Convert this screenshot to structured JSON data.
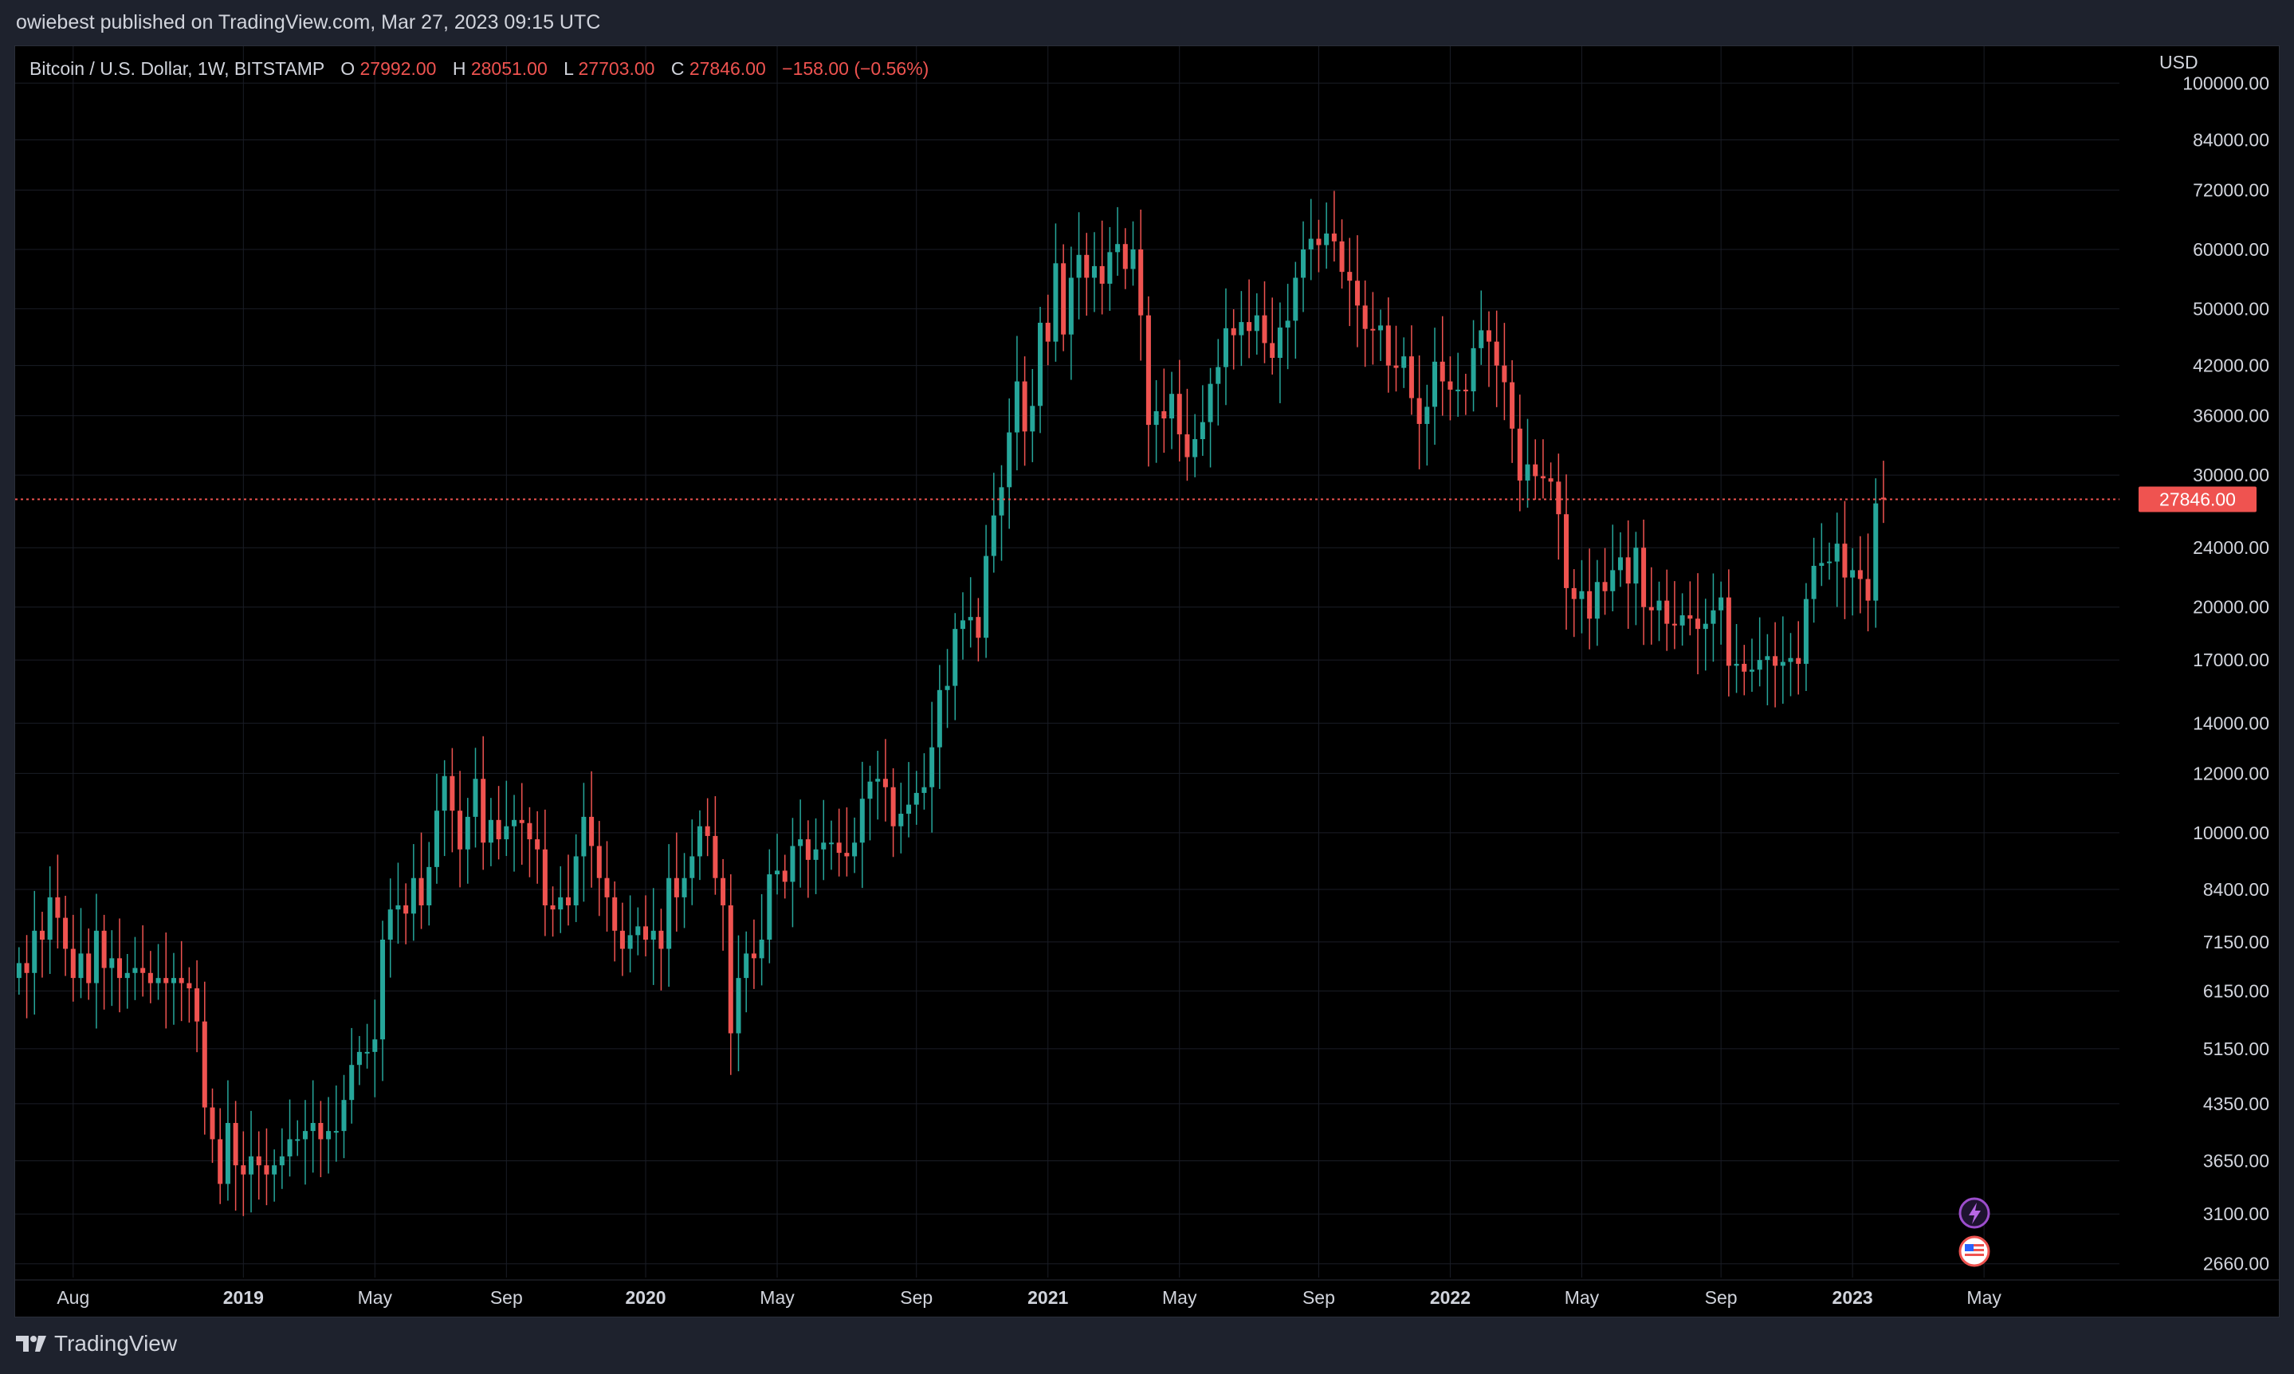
{
  "header": {
    "publish_text": "owiebest published on TradingView.com, Mar 27, 2023 09:15 UTC"
  },
  "legend": {
    "symbol": "Bitcoin / U.S. Dollar, 1W, BITSTAMP",
    "o_label": "O",
    "o_value": "27992.00",
    "h_label": "H",
    "h_value": "28051.00",
    "l_label": "L",
    "l_value": "27703.00",
    "c_label": "C",
    "c_value": "27846.00",
    "change": "−158.00 (−0.56%)"
  },
  "footer": {
    "brand": "TradingView"
  },
  "colors": {
    "up": "#26a69a",
    "down": "#ef5350",
    "grid": "#1a1d26",
    "text": "#d1d4dc",
    "price_line": "#ef5350"
  },
  "chart_data": {
    "type": "candlestick",
    "scale": "log",
    "currency_label": "USD",
    "last_price_label": "27846.00",
    "last_price": 27846,
    "ylim": [
      2500,
      110000
    ],
    "y_ticks": [
      {
        "label": "100000.00",
        "value": 100000
      },
      {
        "label": "84000.00",
        "value": 84000
      },
      {
        "label": "72000.00",
        "value": 72000
      },
      {
        "label": "60000.00",
        "value": 60000
      },
      {
        "label": "50000.00",
        "value": 50000
      },
      {
        "label": "42000.00",
        "value": 42000
      },
      {
        "label": "36000.00",
        "value": 36000
      },
      {
        "label": "30000.00",
        "value": 30000
      },
      {
        "label": "24000.00",
        "value": 24000
      },
      {
        "label": "20000.00",
        "value": 20000
      },
      {
        "label": "17000.00",
        "value": 17000
      },
      {
        "label": "14000.00",
        "value": 14000
      },
      {
        "label": "12000.00",
        "value": 12000
      },
      {
        "label": "10000.00",
        "value": 10000
      },
      {
        "label": "8400.00",
        "value": 8400
      },
      {
        "label": "7150.00",
        "value": 7150
      },
      {
        "label": "6150.00",
        "value": 6150
      },
      {
        "label": "5150.00",
        "value": 5150
      },
      {
        "label": "4350.00",
        "value": 4350
      },
      {
        "label": "3650.00",
        "value": 3650
      },
      {
        "label": "3100.00",
        "value": 3100
      },
      {
        "label": "2660.00",
        "value": 2660
      }
    ],
    "x_ticks": [
      {
        "label": "Aug",
        "bold": false,
        "index": 7
      },
      {
        "label": "2019",
        "bold": true,
        "index": 29
      },
      {
        "label": "May",
        "bold": false,
        "index": 46
      },
      {
        "label": "Sep",
        "bold": false,
        "index": 63
      },
      {
        "label": "2020",
        "bold": true,
        "index": 81
      },
      {
        "label": "May",
        "bold": false,
        "index": 98
      },
      {
        "label": "Sep",
        "bold": false,
        "index": 116
      },
      {
        "label": "2021",
        "bold": true,
        "index": 133
      },
      {
        "label": "May",
        "bold": false,
        "index": 150
      },
      {
        "label": "Sep",
        "bold": false,
        "index": 168
      },
      {
        "label": "2022",
        "bold": true,
        "index": 185
      },
      {
        "label": "May",
        "bold": false,
        "index": 202
      },
      {
        "label": "Sep",
        "bold": false,
        "index": 220
      },
      {
        "label": "2023",
        "bold": true,
        "index": 237
      },
      {
        "label": "May",
        "bold": false,
        "index": 254
      }
    ],
    "total_slots": 272,
    "closes": [
      6700,
      6500,
      7400,
      7200,
      8200,
      7700,
      7000,
      6400,
      6900,
      6300,
      7400,
      6600,
      6800,
      6400,
      6500,
      6600,
      6500,
      6300,
      6400,
      6300,
      6400,
      6300,
      6200,
      5600,
      4300,
      3900,
      3400,
      4100,
      3600,
      3500,
      3700,
      3600,
      3500,
      3600,
      3700,
      3900,
      3900,
      4000,
      4100,
      3900,
      4000,
      4000,
      4400,
      4900,
      5100,
      5100,
      5300,
      7200,
      7900,
      8000,
      7800,
      8700,
      8000,
      9000,
      10700,
      11900,
      10700,
      9500,
      10500,
      11800,
      9700,
      10400,
      9800,
      10200,
      10400,
      10300,
      9800,
      9500,
      8000,
      7900,
      8200,
      8000,
      9300,
      10500,
      9600,
      8700,
      8200,
      7400,
      7000,
      7300,
      7500,
      7200,
      7400,
      7000,
      8700,
      8200,
      8700,
      9300,
      10200,
      9900,
      8700,
      8000,
      5400,
      6400,
      6900,
      6800,
      7200,
      8800,
      8900,
      8600,
      9600,
      9800,
      9200,
      9500,
      9700,
      9700,
      9400,
      9300,
      9700,
      11100,
      11700,
      11800,
      11500,
      10200,
      10600,
      10900,
      11300,
      11500,
      13000,
      15500,
      15700,
      18700,
      19200,
      19400,
      18200,
      23400,
      26500,
      28900,
      34200,
      40000,
      34300,
      37100,
      47900,
      45200,
      57500,
      46200,
      55000,
      59000,
      55000,
      57000,
      54000,
      59500,
      61000,
      56500,
      60000,
      49000,
      35000,
      36500,
      35700,
      38500,
      34000,
      31700,
      33500,
      35300,
      39700,
      41800,
      47100,
      46100,
      48000,
      46700,
      49000,
      45000,
      43000,
      47200,
      48200,
      55000,
      60000,
      62000,
      60800,
      63000,
      61500,
      56000,
      54500,
      50500,
      47000,
      46800,
      47500,
      42000,
      41700,
      43200,
      38000,
      35100,
      37000,
      42500,
      40000,
      39000,
      39000,
      38800,
      44300,
      46800,
      45200,
      42000,
      39900,
      34600,
      29500,
      31000,
      29900,
      29700,
      29400,
      26600,
      21200,
      20500,
      21000,
      19300,
      21600,
      21000,
      22400,
      23300,
      21500,
      24000,
      20000,
      19800,
      20400,
      19000,
      18900,
      19500,
      19300,
      18700,
      19000,
      19800,
      20600,
      16700,
      16800,
      16400,
      16500,
      17000,
      17200,
      16700,
      16900,
      17100,
      16800,
      20500,
      22700,
      22900,
      23000,
      24300,
      21900,
      22400,
      21800,
      20400,
      27500,
      27846
    ],
    "opens": [
      6400,
      6700,
      6500,
      7400,
      7200,
      8200,
      7700,
      7000,
      6400,
      6900,
      6300,
      7400,
      6600,
      6800,
      6400,
      6500,
      6600,
      6500,
      6300,
      6400,
      6300,
      6400,
      6300,
      6200,
      5600,
      4300,
      3900,
      3400,
      4100,
      3600,
      3500,
      3700,
      3600,
      3500,
      3600,
      3700,
      3900,
      3900,
      4000,
      4100,
      3900,
      4000,
      4000,
      4400,
      4900,
      5100,
      5100,
      5300,
      7200,
      7900,
      8000,
      7800,
      8700,
      8000,
      9000,
      10700,
      11900,
      10700,
      9500,
      10500,
      11800,
      9700,
      10400,
      9800,
      10200,
      10400,
      10300,
      9800,
      9500,
      8000,
      7900,
      8200,
      8000,
      9300,
      10500,
      9600,
      8700,
      8200,
      7400,
      7000,
      7300,
      7500,
      7200,
      7400,
      7000,
      8700,
      8200,
      8700,
      9300,
      10200,
      9900,
      8700,
      8000,
      5400,
      6400,
      6900,
      6800,
      7200,
      8800,
      8900,
      8600,
      9600,
      9800,
      9200,
      9500,
      9700,
      9700,
      9400,
      9300,
      9700,
      11100,
      11700,
      11800,
      11500,
      10200,
      10600,
      10900,
      11300,
      11500,
      13000,
      15500,
      15700,
      18700,
      19200,
      19400,
      18200,
      23400,
      26500,
      28900,
      34200,
      40000,
      34300,
      37100,
      47900,
      45200,
      57500,
      46200,
      55000,
      59000,
      55000,
      57000,
      54000,
      59500,
      61000,
      56500,
      60000,
      49000,
      35000,
      36500,
      35700,
      38500,
      34000,
      31700,
      33500,
      35300,
      39700,
      41800,
      47100,
      46100,
      48000,
      46700,
      49000,
      45000,
      43000,
      47200,
      48200,
      55000,
      60000,
      62000,
      60800,
      63000,
      61500,
      56000,
      54500,
      50500,
      47000,
      46800,
      47500,
      42000,
      41700,
      43200,
      38000,
      35100,
      37000,
      42500,
      40000,
      39000,
      39000,
      38800,
      44300,
      46800,
      45200,
      42000,
      39900,
      34600,
      29500,
      31000,
      29900,
      29700,
      29400,
      26600,
      21200,
      20500,
      21000,
      19300,
      21600,
      21000,
      22400,
      23300,
      21500,
      24000,
      20000,
      19800,
      20400,
      19000,
      18900,
      19500,
      19300,
      18700,
      19000,
      19800,
      20600,
      16700,
      16800,
      16400,
      16500,
      17000,
      17200,
      16700,
      16900,
      17100,
      16800,
      20500,
      22700,
      22900,
      23000,
      24300,
      21900,
      22400,
      21800,
      20400,
      27992
    ]
  }
}
